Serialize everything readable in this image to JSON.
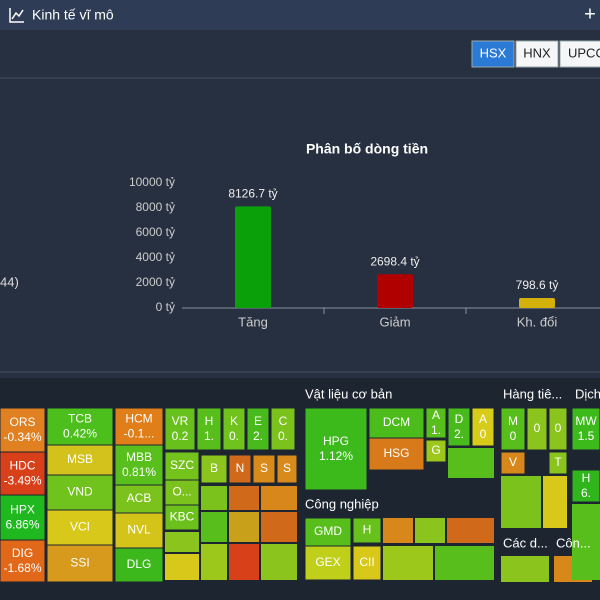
{
  "header": {
    "title": "Kinh tế vĩ mô"
  },
  "tabs": [
    "HSX",
    "HNX",
    "UPCOM"
  ],
  "side_fragment": "44)",
  "chart_data": {
    "type": "bar",
    "title": "Phân bố dòng tiền",
    "categories": [
      "Tăng",
      "Giảm",
      "Kh. đổi"
    ],
    "values": [
      8126.7,
      2698.4,
      798.6
    ],
    "value_labels": [
      "8126.7 tỷ",
      "2698.4 tỷ",
      "798.6 tỷ"
    ],
    "colors": [
      "#0aa00a",
      "#b00000",
      "#d4b00a"
    ],
    "ylim": [
      0,
      10000
    ],
    "yticks": [
      {
        "value": 0,
        "label": "0 tỷ"
      },
      {
        "value": 2000,
        "label": "2000 tỷ"
      },
      {
        "value": 4000,
        "label": "4000 tỷ"
      },
      {
        "value": 6000,
        "label": "6000 tỷ"
      },
      {
        "value": 8000,
        "label": "8000 tỷ"
      },
      {
        "value": 10000,
        "label": "10000 tỷ"
      }
    ]
  },
  "treemap": {
    "sectors": [
      "Vật liệu cơ bản",
      "Công nghiệp",
      "Hàng tiê...",
      "Dịch",
      "Các d...",
      "Côn..."
    ],
    "cells": [
      {
        "label": "ORS",
        "change": "-0.34%",
        "color": "#e08020"
      },
      {
        "label": "HDC",
        "change": "-3.49%",
        "color": "#d8401a"
      },
      {
        "label": "HPX",
        "change": "6.86%",
        "color": "#1fb81f"
      },
      {
        "label": "DIG",
        "change": "-1.68%",
        "color": "#e06818"
      },
      {
        "label": "TCB",
        "change": "0.42%",
        "color": "#4cbf1c"
      },
      {
        "label": "MSB",
        "color": "#d4c21c"
      },
      {
        "label": "VND",
        "color": "#70c21c"
      },
      {
        "label": "VCI",
        "color": "#d8c81a"
      },
      {
        "label": "SSI",
        "color": "#d89a1c"
      },
      {
        "label": "HCM",
        "change": "-0.1...",
        "color": "#e07e1a"
      },
      {
        "label": "MBB",
        "change": "0.81%",
        "color": "#58bf1c"
      },
      {
        "label": "ACB",
        "color": "#7cc21c"
      },
      {
        "label": "NVL",
        "color": "#d4c41a"
      },
      {
        "label": "DLG",
        "color": "#3cb81c"
      },
      {
        "label": "VR",
        "change": "0.2",
        "color": "#68c01c"
      },
      {
        "label": "H",
        "change": "1.",
        "color": "#58be1c"
      },
      {
        "label": "K",
        "change": "0.",
        "color": "#70c21c"
      },
      {
        "label": "E",
        "change": "2.",
        "color": "#48ba1c"
      },
      {
        "label": "C",
        "change": "0.",
        "color": "#7cc21c"
      },
      {
        "label": "SZC",
        "color": "#74c21c"
      },
      {
        "label": "B",
        "color": "#8ac41c"
      },
      {
        "label": "N",
        "color": "#d06a1a"
      },
      {
        "label": "S",
        "color": "#d88a1a"
      },
      {
        "label": "S",
        "color": "#d88a1a"
      },
      {
        "label": "O...",
        "color": "#7cc21c"
      },
      {
        "label": "KBC",
        "color": "#6cc01c"
      },
      {
        "label": "HPG",
        "change": "1.12%",
        "color": "#3cba1c"
      },
      {
        "label": "DCM",
        "color": "#4cbc1c"
      },
      {
        "label": "HSG",
        "color": "#d87a1a"
      },
      {
        "label": "A",
        "change": "1.",
        "color": "#58be1c"
      },
      {
        "label": "G",
        "color": "#9cc81c"
      },
      {
        "label": "D",
        "change": "2.",
        "color": "#48ba1c"
      },
      {
        "label": "A",
        "change": "0",
        "color": "#d8cc1a"
      },
      {
        "label": "GMD",
        "color": "#58be1c"
      },
      {
        "label": "GEX",
        "color": "#c0d01a"
      },
      {
        "label": "H",
        "color": "#68c01c"
      },
      {
        "label": "CII",
        "color": "#d8c81a"
      },
      {
        "label": "M",
        "change": "0",
        "color": "#58be1c"
      },
      {
        "label": "0",
        "color": "#8ac41c"
      },
      {
        "label": "0",
        "color": "#8ac41c"
      },
      {
        "label": "V",
        "color": "#d8881a"
      },
      {
        "label": "T",
        "color": "#8ac41c"
      },
      {
        "label": "MW",
        "change": "1.5",
        "color": "#3cba1c"
      },
      {
        "label": "H",
        "change": "6.",
        "color": "#30b61c"
      }
    ]
  }
}
